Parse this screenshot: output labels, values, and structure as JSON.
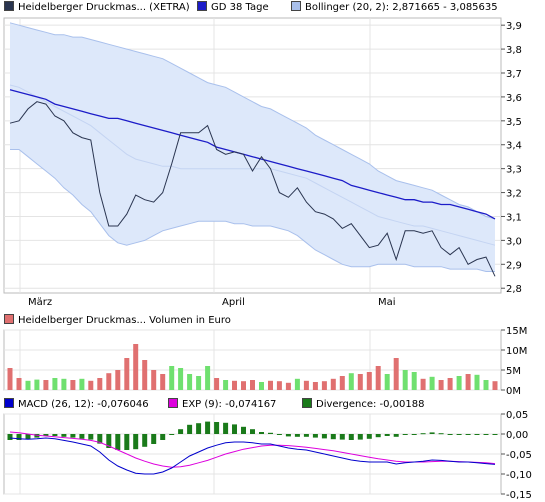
{
  "legend": {
    "price": {
      "label": "Heidelberger Druckmas... (XETRA)",
      "color": "#2a3550"
    },
    "gd38": {
      "label": "GD 38 Tage",
      "color": "#1c1cc8"
    },
    "bollinger": {
      "label": "Bollinger (20, 2): 2,871665 - 3,085635",
      "color": "#a9c0ec"
    },
    "volume": {
      "label": "Heidelberger Druckmas... Volumen in Euro",
      "color": "#e07070"
    },
    "macd": {
      "label": "MACD (26, 12): -0,076046",
      "color": "#0000cc"
    },
    "exp": {
      "label": "EXP (9): -0,074167",
      "color": "#dd00dd"
    },
    "divergence": {
      "label": "Divergence: -0,00188",
      "color": "#1a7a1a"
    }
  },
  "chart_data": [
    {
      "type": "line",
      "title": "",
      "x_labels": [
        "März",
        "April",
        "Mai"
      ],
      "ylim": [
        2.78,
        3.93
      ],
      "yticks": [
        "3,9",
        "3,8",
        "3,7",
        "3,6",
        "3,5",
        "3,4",
        "3,3",
        "3,2",
        "3,1",
        "3,0",
        "2,9",
        "2,8"
      ],
      "series": [
        {
          "name": "Heidelberger Druckmas... (XETRA)",
          "values": [
            3.49,
            3.5,
            3.55,
            3.58,
            3.57,
            3.52,
            3.5,
            3.45,
            3.43,
            3.42,
            3.2,
            3.06,
            3.06,
            3.11,
            3.19,
            3.17,
            3.16,
            3.2,
            3.32,
            3.45,
            3.45,
            3.45,
            3.48,
            3.38,
            3.36,
            3.37,
            3.36,
            3.29,
            3.35,
            3.3,
            3.2,
            3.18,
            3.22,
            3.16,
            3.12,
            3.11,
            3.09,
            3.05,
            3.07,
            3.02,
            2.97,
            2.98,
            3.03,
            2.92,
            3.04,
            3.04,
            3.03,
            3.04,
            2.97,
            2.94,
            2.97,
            2.9,
            2.92,
            2.93,
            2.85
          ]
        },
        {
          "name": "GD 38 Tage",
          "values": [
            3.63,
            3.62,
            3.61,
            3.6,
            3.59,
            3.57,
            3.56,
            3.55,
            3.54,
            3.53,
            3.52,
            3.51,
            3.51,
            3.5,
            3.49,
            3.48,
            3.47,
            3.46,
            3.45,
            3.44,
            3.43,
            3.42,
            3.41,
            3.39,
            3.38,
            3.37,
            3.36,
            3.35,
            3.34,
            3.33,
            3.32,
            3.31,
            3.3,
            3.29,
            3.28,
            3.27,
            3.26,
            3.25,
            3.23,
            3.22,
            3.21,
            3.2,
            3.19,
            3.18,
            3.17,
            3.17,
            3.16,
            3.16,
            3.15,
            3.15,
            3.14,
            3.13,
            3.12,
            3.11,
            3.09
          ]
        },
        {
          "name": "Bollinger mid",
          "values": [
            3.65,
            3.64,
            3.62,
            3.6,
            3.58,
            3.56,
            3.54,
            3.52,
            3.5,
            3.48,
            3.45,
            3.42,
            3.39,
            3.36,
            3.34,
            3.33,
            3.32,
            3.31,
            3.31,
            3.3,
            3.3,
            3.3,
            3.3,
            3.3,
            3.3,
            3.3,
            3.3,
            3.3,
            3.3,
            3.3,
            3.29,
            3.28,
            3.27,
            3.26,
            3.24,
            3.22,
            3.2,
            3.18,
            3.16,
            3.14,
            3.12,
            3.1,
            3.09,
            3.08,
            3.07,
            3.06,
            3.06,
            3.05,
            3.04,
            3.03,
            3.02,
            3.01,
            3.0,
            2.99,
            2.98
          ]
        },
        {
          "name": "Bollinger upper",
          "values": [
            3.91,
            3.9,
            3.89,
            3.88,
            3.87,
            3.86,
            3.86,
            3.85,
            3.85,
            3.84,
            3.83,
            3.82,
            3.81,
            3.8,
            3.79,
            3.78,
            3.77,
            3.76,
            3.74,
            3.72,
            3.7,
            3.68,
            3.66,
            3.65,
            3.64,
            3.62,
            3.6,
            3.58,
            3.56,
            3.55,
            3.53,
            3.51,
            3.49,
            3.47,
            3.44,
            3.42,
            3.4,
            3.38,
            3.36,
            3.34,
            3.32,
            3.29,
            3.27,
            3.25,
            3.24,
            3.23,
            3.22,
            3.21,
            3.19,
            3.17,
            3.15,
            3.14,
            3.12,
            3.1,
            3.09
          ]
        },
        {
          "name": "Bollinger lower",
          "values": [
            3.38,
            3.38,
            3.35,
            3.32,
            3.29,
            3.26,
            3.22,
            3.19,
            3.15,
            3.12,
            3.07,
            3.02,
            2.99,
            2.98,
            2.99,
            3.0,
            3.02,
            3.04,
            3.05,
            3.06,
            3.07,
            3.08,
            3.08,
            3.08,
            3.08,
            3.07,
            3.07,
            3.06,
            3.06,
            3.06,
            3.05,
            3.04,
            3.02,
            2.99,
            2.96,
            2.94,
            2.92,
            2.9,
            2.89,
            2.89,
            2.89,
            2.9,
            2.9,
            2.9,
            2.9,
            2.89,
            2.89,
            2.89,
            2.89,
            2.88,
            2.88,
            2.88,
            2.88,
            2.87,
            2.87
          ]
        }
      ]
    },
    {
      "type": "bar",
      "title": "",
      "ylim": [
        0,
        15
      ],
      "yticks": [
        "15M",
        "10M",
        "5M",
        "0M"
      ],
      "values": [
        5.5,
        3.0,
        2.3,
        2.6,
        2.5,
        3.0,
        2.8,
        2.5,
        2.8,
        2.3,
        3.0,
        4.2,
        5.0,
        8.0,
        11.5,
        7.5,
        5.0,
        4.0,
        6.0,
        5.5,
        4.0,
        3.5,
        6.0,
        3.0,
        2.5,
        2.3,
        2.2,
        2.5,
        2.0,
        2.3,
        2.2,
        1.8,
        2.8,
        2.3,
        2.0,
        2.2,
        2.8,
        3.5,
        4.2,
        4.0,
        4.5,
        6.0,
        4.0,
        8.0,
        5.0,
        4.5,
        2.8,
        3.3,
        2.5,
        3.0,
        3.5,
        4.0,
        3.8,
        2.5,
        2.2
      ],
      "up_days": [
        false,
        false,
        true,
        true,
        false,
        true,
        true,
        false,
        true,
        false,
        false,
        false,
        false,
        false,
        false,
        false,
        false,
        false,
        true,
        true,
        true,
        true,
        true,
        false,
        true,
        false,
        false,
        false,
        true,
        false,
        false,
        false,
        true,
        false,
        false,
        false,
        false,
        false,
        true,
        false,
        false,
        false,
        true,
        false,
        true,
        true,
        false,
        true,
        false,
        false,
        true,
        false,
        true,
        true,
        false
      ],
      "colors": {
        "up": "#6fe06f",
        "down": "#e07070"
      }
    },
    {
      "type": "line",
      "title": "",
      "ylim": [
        -0.15,
        0.05
      ],
      "yticks": [
        "0,05",
        "0,00",
        "-0,05",
        "-0,10",
        "-0,15"
      ],
      "series": [
        {
          "name": "MACD (26, 12)",
          "values": [
            -0.01,
            -0.012,
            -0.013,
            -0.012,
            -0.01,
            -0.012,
            -0.016,
            -0.02,
            -0.025,
            -0.03,
            -0.045,
            -0.065,
            -0.08,
            -0.09,
            -0.098,
            -0.1,
            -0.1,
            -0.095,
            -0.085,
            -0.07,
            -0.055,
            -0.045,
            -0.035,
            -0.028,
            -0.022,
            -0.02,
            -0.02,
            -0.022,
            -0.025,
            -0.025,
            -0.03,
            -0.035,
            -0.038,
            -0.04,
            -0.045,
            -0.05,
            -0.055,
            -0.06,
            -0.065,
            -0.068,
            -0.07,
            -0.07,
            -0.07,
            -0.075,
            -0.072,
            -0.07,
            -0.068,
            -0.065,
            -0.066,
            -0.068,
            -0.07,
            -0.07,
            -0.072,
            -0.074,
            -0.076
          ]
        },
        {
          "name": "EXP (9)",
          "values": [
            0.005,
            0.003,
            0.0,
            -0.003,
            -0.005,
            -0.007,
            -0.009,
            -0.011,
            -0.013,
            -0.016,
            -0.021,
            -0.03,
            -0.04,
            -0.05,
            -0.06,
            -0.068,
            -0.075,
            -0.08,
            -0.083,
            -0.082,
            -0.078,
            -0.072,
            -0.066,
            -0.058,
            -0.05,
            -0.044,
            -0.038,
            -0.034,
            -0.03,
            -0.028,
            -0.028,
            -0.029,
            -0.031,
            -0.033,
            -0.036,
            -0.039,
            -0.042,
            -0.046,
            -0.05,
            -0.054,
            -0.058,
            -0.062,
            -0.065,
            -0.068,
            -0.07,
            -0.07,
            -0.07,
            -0.069,
            -0.068,
            -0.068,
            -0.069,
            -0.07,
            -0.071,
            -0.072,
            -0.074
          ]
        },
        {
          "name": "Divergence",
          "values": [
            -0.015,
            -0.015,
            -0.013,
            -0.009,
            -0.005,
            -0.005,
            -0.007,
            -0.009,
            -0.012,
            -0.014,
            -0.024,
            -0.035,
            -0.04,
            -0.04,
            -0.038,
            -0.032,
            -0.025,
            -0.015,
            -0.002,
            0.012,
            0.023,
            0.027,
            0.031,
            0.03,
            0.028,
            0.024,
            0.018,
            0.012,
            0.005,
            0.003,
            -0.002,
            -0.006,
            -0.007,
            -0.007,
            -0.009,
            -0.011,
            -0.013,
            -0.014,
            -0.015,
            -0.014,
            -0.012,
            -0.008,
            -0.005,
            -0.007,
            -0.002,
            0.0,
            0.002,
            0.004,
            0.002,
            0.0,
            -0.001,
            0.0,
            -0.001,
            -0.002,
            -0.002
          ]
        }
      ]
    }
  ]
}
